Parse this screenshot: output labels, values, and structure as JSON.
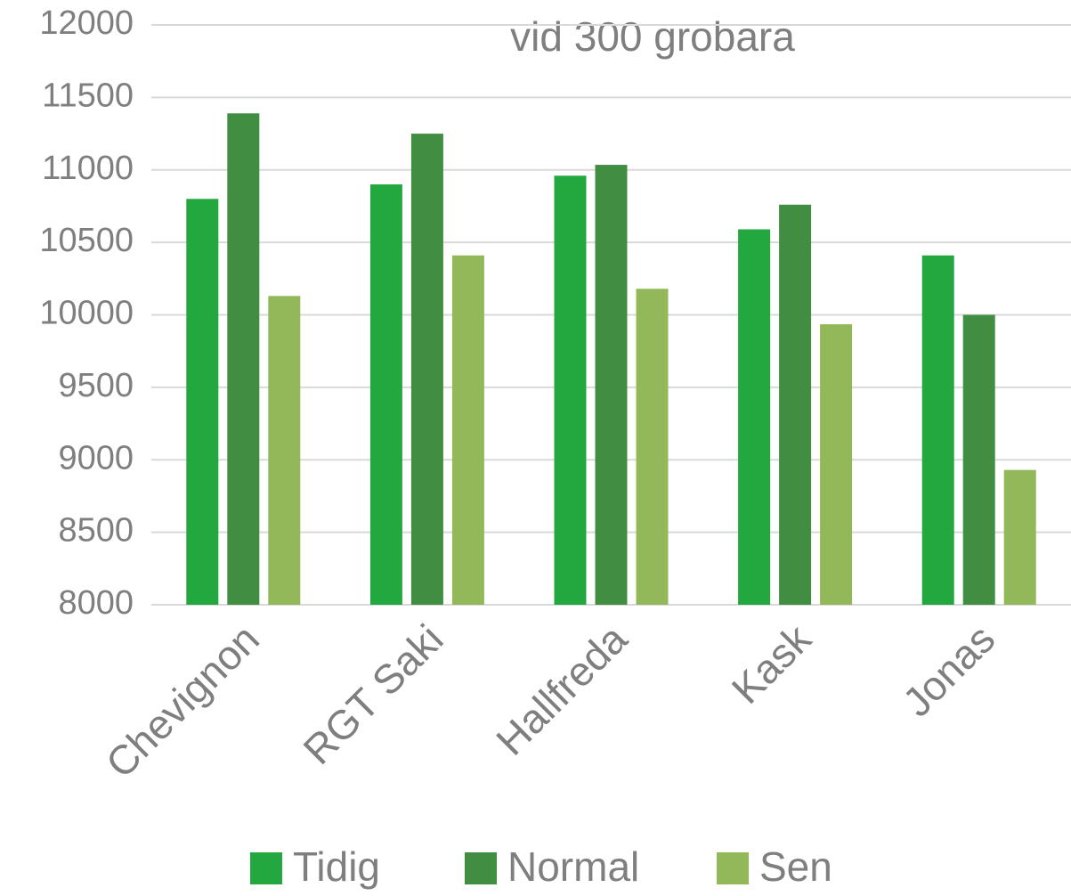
{
  "chart_data": {
    "type": "bar",
    "title": "vid 300 grobara",
    "categories": [
      "Chevignon",
      "RGT Saki",
      "Hallfreda",
      "Kask",
      "Jonas"
    ],
    "series": [
      {
        "name": "Tidig",
        "color": "#23a73f",
        "values": [
          10800,
          10900,
          10960,
          10590,
          10410
        ]
      },
      {
        "name": "Normal",
        "color": "#418d42",
        "values": [
          11390,
          11250,
          11035,
          10760,
          10000
        ]
      },
      {
        "name": "Sen",
        "color": "#92b85a",
        "values": [
          10130,
          10410,
          10180,
          9935,
          8930
        ]
      }
    ],
    "ylim": [
      8000,
      12000
    ],
    "yticks": [
      8000,
      8500,
      9000,
      9500,
      10000,
      10500,
      11000,
      11500,
      12000
    ],
    "grid": true,
    "legend": "bottom"
  }
}
